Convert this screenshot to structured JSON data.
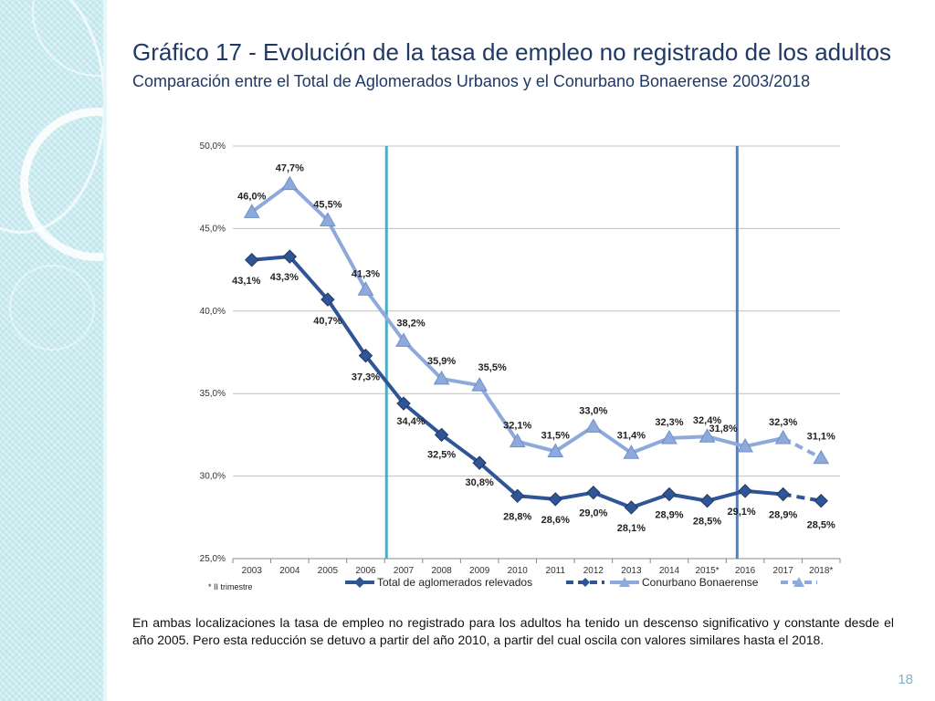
{
  "slide": {
    "title": "Gráfico 17 - Evolución de la tasa de empleo no registrado de los adultos",
    "subtitle": "Comparación entre el Total de Aglomerados Urbanos y el Conurbano Bonaerense 2003/2018",
    "body": "En ambas localizaciones la tasa de empleo no registrado para los adultos ha tenido un descenso significativo y constante desde el año 2005. Pero esta reducción se detuvo a partir del año 2010, a partir del cual oscila con valores similares hasta el 2018.",
    "page_number": "18",
    "footnote": "* II trimestre"
  },
  "colors": {
    "series_total": "#2f5597",
    "series_conurbano": "#8ea9db",
    "marker_total": "#203864",
    "vline_2007": "#4bacc6",
    "vline_2016": "#5b7fb5",
    "grid": "#bfbfbf"
  },
  "chart_data": {
    "type": "line",
    "categories": [
      "2003",
      "2004",
      "2005",
      "2006",
      "2007",
      "2008",
      "2009",
      "2010",
      "2011",
      "2012",
      "2013",
      "2014",
      "2015*",
      "2016",
      "2017",
      "2018*"
    ],
    "ylim": [
      25,
      50
    ],
    "yticks": [
      "25,0%",
      "30,0%",
      "35,0%",
      "40,0%",
      "45,0%",
      "50,0%"
    ],
    "ytick_values": [
      25,
      30,
      35,
      40,
      45,
      50
    ],
    "series": [
      {
        "name": "Total de aglomerados relevados",
        "marker": "diamond",
        "values": [
          43.1,
          43.3,
          40.7,
          37.3,
          34.4,
          32.5,
          30.8,
          28.8,
          28.6,
          29.0,
          28.1,
          28.9,
          28.5,
          29.1,
          28.9,
          28.5
        ],
        "labels": [
          "43,1%",
          "43,3%",
          "40,7%",
          "37,3%",
          "34,4%",
          "32,5%",
          "30,8%",
          "28,8%",
          "28,6%",
          "29,0%",
          "28,1%",
          "28,9%",
          "28,5%",
          "29,1%",
          "28,9%",
          "28,5%"
        ],
        "dashed_last_segment": true
      },
      {
        "name": "Conurbano Bonaerense",
        "marker": "triangle",
        "values": [
          46.0,
          47.7,
          45.5,
          41.3,
          38.2,
          35.9,
          35.5,
          32.1,
          31.5,
          33.0,
          31.4,
          32.3,
          32.4,
          31.8,
          32.3,
          31.1
        ],
        "labels": [
          "46,0%",
          "47,7%",
          "45,5%",
          "41,3%",
          "38,2%",
          "35,9%",
          "35,5%",
          "32,1%",
          "31,5%",
          "33,0%",
          "31,4%",
          "32,3%",
          "32,4%",
          "31,8%",
          "32,3%",
          "31,1%"
        ],
        "dashed_last_segment": true
      }
    ],
    "vertical_markers": [
      "2007",
      "2016"
    ],
    "legend_position": "bottom"
  }
}
